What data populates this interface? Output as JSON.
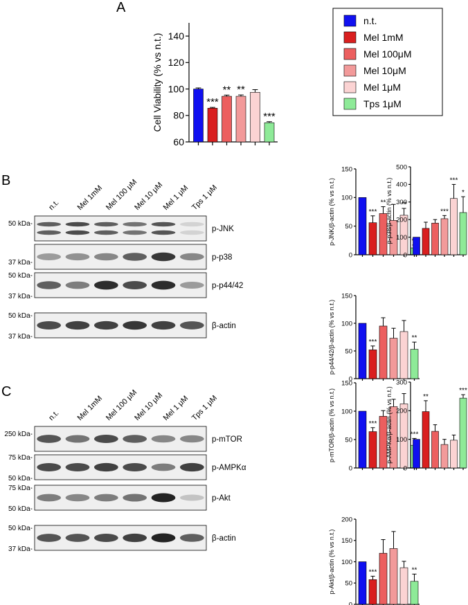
{
  "panel_letters": [
    "A",
    "B",
    "C"
  ],
  "colors": {
    "n.t.": "#1010f0",
    "mel_1mM": "#d91f1f",
    "mel_100uM": "#ec5f5f",
    "mel_10uM": "#f29a9a",
    "mel_1uM": "#fbd3d3",
    "tps_1uM": "#8eea98"
  },
  "legend": [
    "n.t.",
    "Mel 1mM",
    "Mel 100μM",
    "Mel 10μM",
    "Mel 1μM",
    "Tps 1μM"
  ],
  "blots": {
    "B": {
      "lanes": [
        "n.t.",
        "Mel 1mM",
        "Mel 100 μM",
        "Mel 10 μM",
        "Mel 1 μM",
        "Tps 1 μM"
      ],
      "strips": [
        {
          "label": "p-JNK",
          "markers": [
            "50 kDa-"
          ],
          "doublet": true,
          "intensity": [
            0.7,
            0.8,
            0.7,
            0.6,
            0.75,
            0.12
          ]
        },
        {
          "label": "p-p38",
          "markers": [
            "37 kDa-"
          ],
          "doublet": false,
          "intensity": [
            0.4,
            0.45,
            0.5,
            0.7,
            0.9,
            0.5
          ]
        },
        {
          "label": "p-p44/42",
          "markers": [
            "50 kDa-",
            "37 kDa-"
          ],
          "doublet": false,
          "intensity": [
            0.7,
            0.55,
            0.95,
            0.8,
            0.95,
            0.4
          ]
        },
        {
          "label": "β-actin",
          "markers": [
            "50 kDa-",
            "37 kDa-"
          ],
          "doublet": false,
          "intensity": [
            0.8,
            0.85,
            0.85,
            0.9,
            0.85,
            0.75
          ]
        }
      ]
    },
    "C": {
      "lanes": [
        "n.t.",
        "Mel 1mM",
        "Mel 100 μM",
        "Mel 10 μM",
        "Mel 1 μM",
        "Tps 1 μM"
      ],
      "strips": [
        {
          "label": "p-mTOR",
          "markers": [
            "250 kDa-"
          ],
          "doublet": false,
          "intensity": [
            0.75,
            0.6,
            0.8,
            0.7,
            0.5,
            0.5
          ]
        },
        {
          "label": "p-AMPKα",
          "markers": [
            "75 kDa-",
            "50 kDa-"
          ],
          "doublet": false,
          "intensity": [
            0.8,
            0.8,
            0.85,
            0.8,
            0.55,
            0.85
          ]
        },
        {
          "label": "p-Akt",
          "markers": [
            "75 kDa-",
            "50 kDa-"
          ],
          "doublet": false,
          "intensity": [
            0.55,
            0.5,
            0.55,
            0.6,
            1.0,
            0.2
          ]
        },
        {
          "label": "β-actin",
          "markers": [
            "50 kDa-",
            "37 kDa-"
          ],
          "doublet": false,
          "intensity": [
            0.75,
            0.75,
            0.8,
            0.85,
            1.0,
            0.7
          ]
        }
      ]
    }
  },
  "chart_data": [
    {
      "id": "A",
      "type": "bar",
      "ylabel": "Cell Viability (% vs n.t.)",
      "ylim": [
        60,
        150
      ],
      "yticks": [
        60,
        80,
        100,
        120,
        140
      ],
      "values": [
        100,
        85.5,
        94.5,
        94.5,
        97.5,
        74.5
      ],
      "errors": [
        0.8,
        0.6,
        0.9,
        1.0,
        2.0,
        0.8
      ],
      "significance": [
        "",
        "***",
        "**",
        "**",
        "",
        "***"
      ]
    },
    {
      "id": "JNK",
      "type": "bar",
      "ylabel": "p-JNK/β-actin (% vs n.t.)",
      "ylim": [
        0,
        150
      ],
      "yticks": [
        0,
        50,
        100,
        150
      ],
      "values": [
        100,
        56,
        72,
        60,
        69,
        12
      ],
      "errors": [
        0,
        12,
        12,
        28,
        12,
        5
      ],
      "significance": [
        "",
        "***",
        "**",
        "",
        "**",
        "**"
      ]
    },
    {
      "id": "p38",
      "type": "bar",
      "ylabel": "p-p38/β-actin (% vs n.t.)",
      "ylim": [
        0,
        500
      ],
      "yticks": [
        0,
        100,
        200,
        300,
        400,
        500
      ],
      "values": [
        100,
        150,
        180,
        205,
        320,
        240
      ],
      "errors": [
        0,
        35,
        20,
        18,
        80,
        90
      ],
      "significance": [
        "",
        "",
        "",
        "***",
        "***",
        "*"
      ]
    },
    {
      "id": "p4442",
      "type": "bar",
      "ylabel": "p-p44/42/β-actin (% vs n.t.)",
      "ylim": [
        0,
        150
      ],
      "yticks": [
        0,
        50,
        100,
        150
      ],
      "values": [
        100,
        52,
        95,
        73,
        85,
        53
      ],
      "errors": [
        0,
        7,
        15,
        18,
        20,
        13
      ],
      "significance": [
        "",
        "***",
        "",
        "",
        "",
        "**"
      ]
    },
    {
      "id": "mTOR",
      "type": "bar",
      "ylabel": "p-mTOR/β-actin (% vs n.t.)",
      "ylim": [
        0,
        150
      ],
      "yticks": [
        0,
        50,
        100,
        150
      ],
      "values": [
        100,
        64,
        91,
        108,
        113,
        40
      ],
      "errors": [
        0,
        7,
        10,
        13,
        18,
        12
      ],
      "significance": [
        "",
        "***",
        "",
        "",
        "",
        "***"
      ]
    },
    {
      "id": "AMPK",
      "type": "bar",
      "ylabel": "p-AMPKα/β-actin (% vs n.t.)",
      "ylim": [
        0,
        300
      ],
      "yticks": [
        0,
        100,
        200,
        300
      ],
      "values": [
        100,
        197,
        128,
        82,
        97,
        244
      ],
      "errors": [
        0,
        38,
        23,
        18,
        18,
        12
      ],
      "significance": [
        "",
        "**",
        "",
        "",
        "",
        "***"
      ]
    },
    {
      "id": "Akt",
      "type": "bar",
      "ylabel": "p-Akt/β-actin (% vs n.t.)",
      "ylim": [
        0,
        200
      ],
      "yticks": [
        0,
        50,
        100,
        150,
        200
      ],
      "values": [
        100,
        58,
        120,
        131,
        86,
        54
      ],
      "errors": [
        0,
        8,
        32,
        40,
        15,
        17
      ],
      "significance": [
        "",
        "***",
        "",
        "",
        "",
        "**"
      ]
    }
  ]
}
